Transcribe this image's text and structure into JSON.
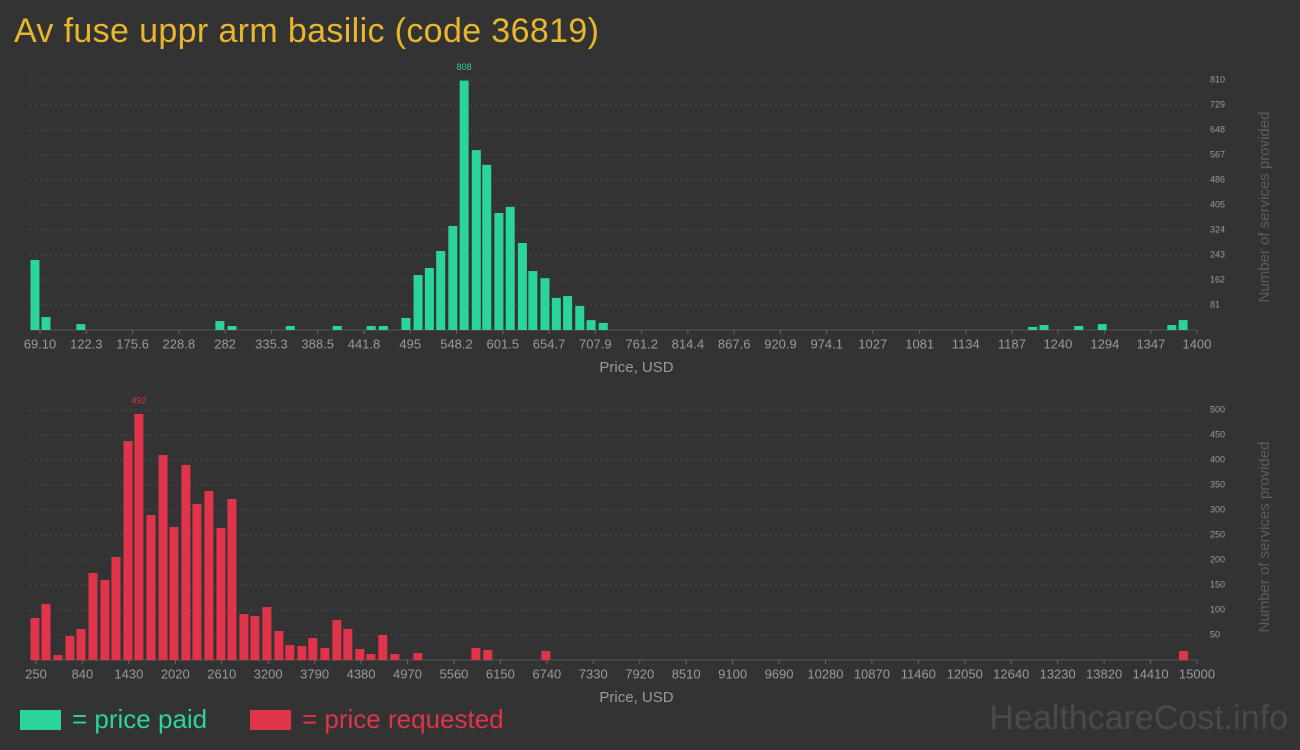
{
  "title": "Av fuse uppr arm basilic (code 36819)",
  "watermark": "HealthcareCost.info",
  "chart_data": [
    {
      "type": "bar",
      "legend_label": "= price paid",
      "color": "#2ad49b",
      "xlabel": "Price, USD",
      "ylabel": "Number of services provided",
      "x": [
        63.3,
        76,
        116,
        276,
        290,
        357,
        411,
        450,
        464,
        490,
        504,
        517,
        530,
        544,
        557,
        571,
        583,
        597,
        610,
        624,
        636,
        650,
        663,
        676,
        690,
        703,
        717,
        1211,
        1224,
        1264,
        1291,
        1371,
        1384
      ],
      "values": [
        227,
        42,
        19,
        29,
        13,
        13,
        13,
        13,
        13,
        39,
        178,
        201,
        256,
        337,
        808,
        583,
        535,
        379,
        399,
        282,
        191,
        168,
        104,
        110,
        78,
        32,
        23,
        10,
        16,
        13,
        19,
        16,
        32
      ],
      "value_labels": [
        null,
        null,
        null,
        null,
        null,
        null,
        null,
        null,
        null,
        null,
        null,
        null,
        null,
        null,
        "808",
        null,
        null,
        null,
        null,
        null,
        null,
        null,
        null,
        null,
        null,
        null,
        null,
        null,
        null,
        null,
        null,
        null,
        null
      ],
      "xlim": [
        57.6,
        1400
      ],
      "xticks": [
        {
          "value": 69.1,
          "label": "69.10"
        },
        122.3,
        175.6,
        228.8,
        282,
        335.3,
        388.5,
        441.8,
        495,
        548.2,
        601.5,
        654.7,
        707.9,
        761.2,
        814.4,
        867.6,
        920.9,
        974.1,
        1027,
        1081,
        1134,
        1187,
        1240,
        1294,
        1347,
        1400
      ],
      "ylim": [
        0,
        810
      ],
      "yticks": [
        81,
        162,
        243,
        324,
        405,
        486,
        567,
        648,
        729,
        810
      ],
      "grid": true
    },
    {
      "type": "bar",
      "legend_label": "= price requested",
      "color": "#e0344a",
      "xlabel": "Price, USD",
      "ylabel": "Number of services provided",
      "x": [
        237,
        377,
        530,
        682,
        822,
        974,
        1126,
        1266,
        1419,
        1557,
        1711,
        1864,
        2002,
        2155,
        2294,
        2447,
        2600,
        2739,
        2892,
        3031,
        3184,
        3336,
        3475,
        3628,
        3767,
        3920,
        4072,
        4212,
        4364,
        4504,
        4656,
        4809,
        5101,
        5838,
        5990,
        6727,
        14830
      ],
      "values": [
        84,
        112,
        10,
        48,
        62,
        174,
        160,
        206,
        438,
        492,
        290,
        410,
        266,
        390,
        312,
        338,
        264,
        322,
        92,
        88,
        106,
        58,
        30,
        28,
        44,
        24,
        80,
        62,
        22,
        12,
        50,
        12,
        14,
        24,
        20,
        18,
        18
      ],
      "value_labels": [
        null,
        null,
        null,
        null,
        null,
        null,
        null,
        null,
        null,
        "492",
        null,
        null,
        null,
        null,
        null,
        null,
        null,
        null,
        null,
        null,
        null,
        null,
        null,
        null,
        null,
        null,
        null,
        null,
        null,
        null,
        null,
        null,
        null,
        null,
        null,
        null,
        null
      ],
      "xlim": [
        174,
        15000
      ],
      "xticks": [
        250,
        840,
        1430,
        2020,
        2610,
        3200,
        3790,
        4380,
        4970,
        5560,
        6150,
        6740,
        7330,
        7920,
        8510,
        9100,
        9690,
        10280,
        10870,
        11460,
        12050,
        12640,
        13230,
        13820,
        14410,
        15000
      ],
      "ylim": [
        0,
        500
      ],
      "yticks": [
        50,
        100,
        150,
        200,
        250,
        300,
        350,
        400,
        450,
        500
      ],
      "grid": true
    }
  ]
}
